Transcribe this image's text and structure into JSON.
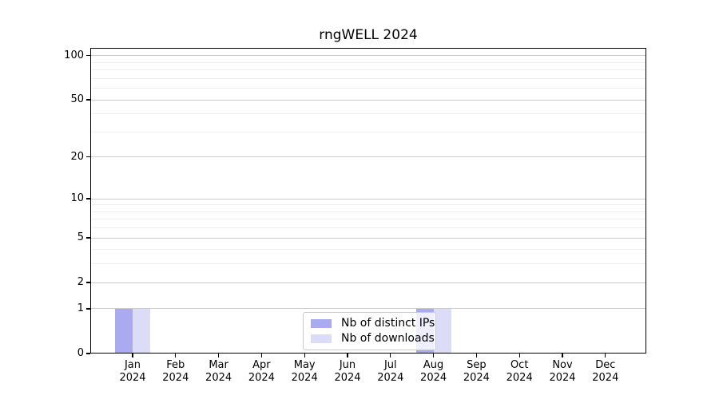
{
  "chart_data": {
    "type": "bar",
    "title": "rngWELL 2024",
    "categories": [
      "Jan 2024",
      "Feb 2024",
      "Mar 2024",
      "Apr 2024",
      "May 2024",
      "Jun 2024",
      "Jul 2024",
      "Aug 2024",
      "Sep 2024",
      "Oct 2024",
      "Nov 2024",
      "Dec 2024"
    ],
    "x_tick_labels": [
      [
        "Jan",
        "2024"
      ],
      [
        "Feb",
        "2024"
      ],
      [
        "Mar",
        "2024"
      ],
      [
        "Apr",
        "2024"
      ],
      [
        "May",
        "2024"
      ],
      [
        "Jun",
        "2024"
      ],
      [
        "Jul",
        "2024"
      ],
      [
        "Aug",
        "2024"
      ],
      [
        "Sep",
        "2024"
      ],
      [
        "Oct",
        "2024"
      ],
      [
        "Nov",
        "2024"
      ],
      [
        "Dec",
        "2024"
      ]
    ],
    "series": [
      {
        "name": "Nb of distinct IPs",
        "color": "#aaaaf0",
        "values": [
          1,
          0,
          0,
          0,
          0,
          0,
          0,
          1,
          0,
          0,
          0,
          0
        ]
      },
      {
        "name": "Nb of downloads",
        "color": "#dcdcf8",
        "values": [
          1,
          0,
          0,
          0,
          0,
          0,
          0,
          1,
          0,
          0,
          0,
          0
        ]
      }
    ],
    "yscale": "log1p",
    "ylim": [
      0,
      113
    ],
    "y_tick_values": [
      0,
      1,
      2,
      5,
      10,
      20,
      50,
      100
    ],
    "y_tick_labels": [
      "0",
      "1",
      "2",
      "5",
      "10",
      "20",
      "50",
      "100"
    ],
    "y_minor_gridlines": [
      3,
      4,
      6,
      7,
      8,
      9,
      30,
      40,
      60,
      70,
      80,
      90
    ],
    "grid": "both",
    "legend": {
      "position": "lower center",
      "items": [
        "Nb of distinct IPs",
        "Nb of downloads"
      ]
    },
    "colors": {
      "major_grid": "#cccccc",
      "minor_grid": "#efefef",
      "axis": "#000000",
      "tick_label": "#000000",
      "legend_border": "#cbcbcb",
      "background": "#ffffff"
    }
  }
}
